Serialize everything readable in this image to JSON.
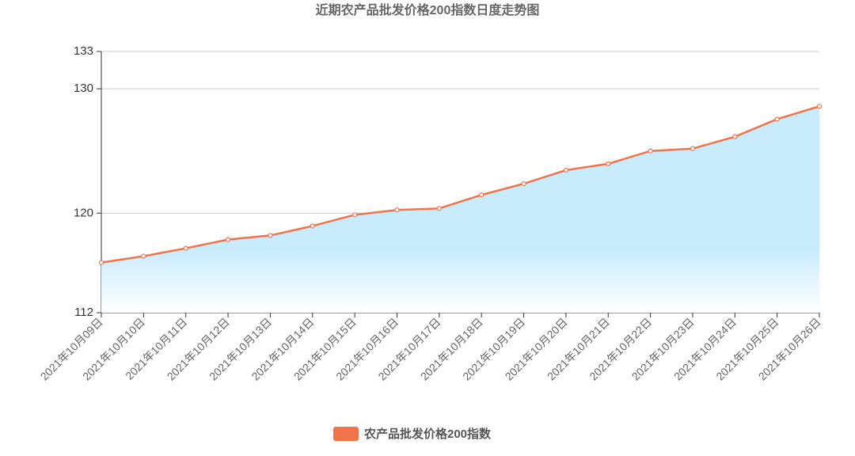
{
  "chart_data": {
    "type": "line",
    "title": "近期农产品批发价格200指数日度走势图",
    "categories": [
      "2021年10月09日",
      "2021年10月10日",
      "2021年10月11日",
      "2021年10月12日",
      "2021年10月13日",
      "2021年10月14日",
      "2021年10月15日",
      "2021年10月16日",
      "2021年10月17日",
      "2021年10月18日",
      "2021年10月19日",
      "2021年10月20日",
      "2021年10月21日",
      "2021年10月22日",
      "2021年10月23日",
      "2021年10月24日",
      "2021年10月25日",
      "2021年10月26日"
    ],
    "series": [
      {
        "name": "农产品批发价格200指数",
        "color": "#f0734a",
        "values": [
          116.03,
          116.54,
          117.18,
          117.88,
          118.21,
          118.97,
          119.87,
          120.26,
          120.38,
          121.47,
          122.37,
          123.46,
          123.97,
          125.0,
          125.19,
          126.15,
          127.56,
          128.59
        ]
      }
    ],
    "area": true,
    "area_color": "#c9ecfd",
    "ylim": [
      112,
      133
    ],
    "yticks": [
      112,
      120,
      130,
      133
    ],
    "grid": true,
    "legend": "bottom"
  }
}
